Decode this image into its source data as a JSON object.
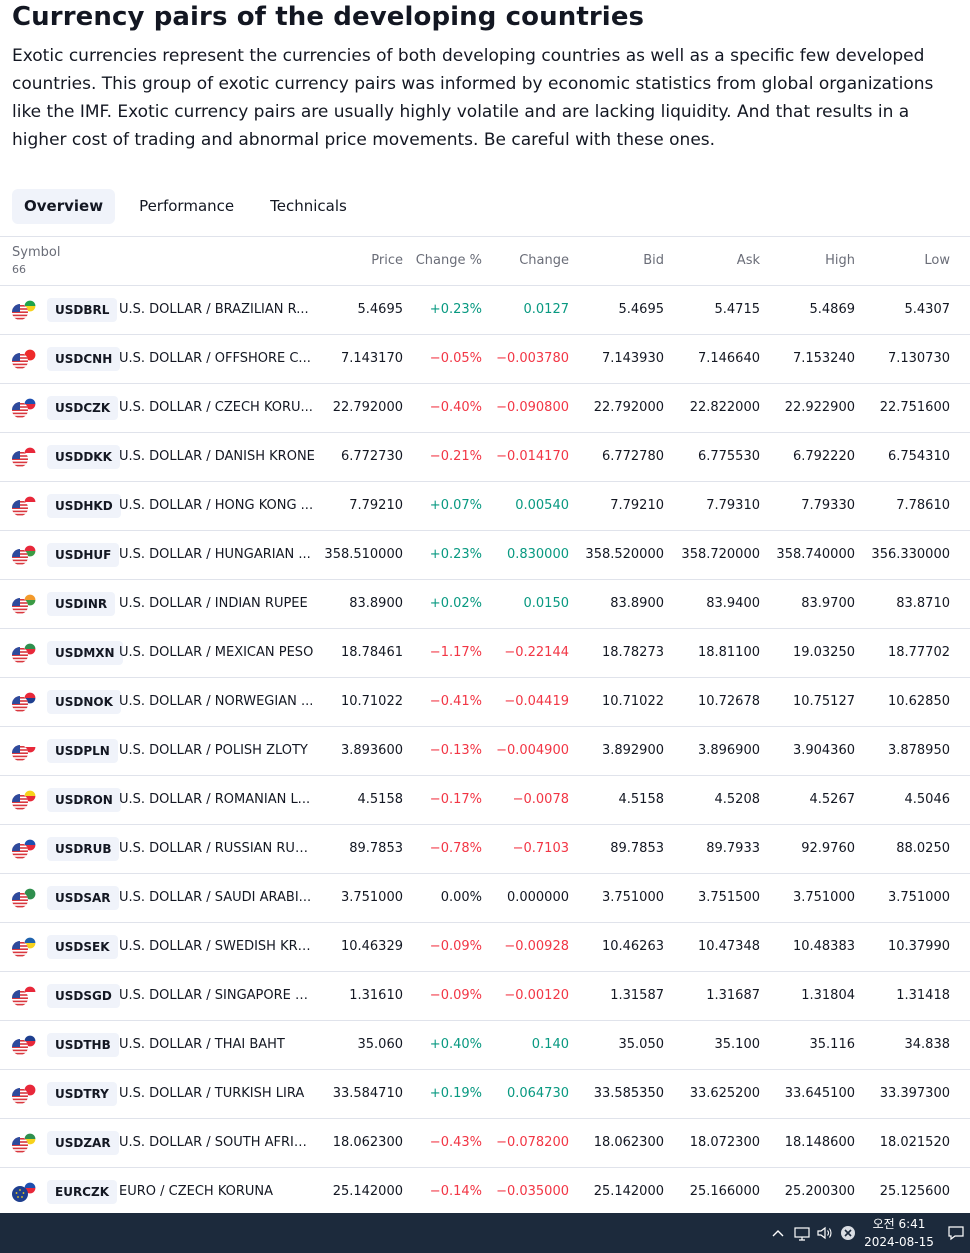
{
  "page": {
    "title": "Currency pairs of the developing countries",
    "description": "Exotic currencies represent the currencies of both developing countries as well as a specific few developed countries. This group of exotic currency pairs was informed by economic statistics from global organizations like the IMF. Exotic currency pairs are usually highly volatile and are lacking liquidity. And that results in a higher cost of trading and abnormal price movements. Be careful with these ones."
  },
  "tabs": [
    {
      "label": "Overview",
      "active": true
    },
    {
      "label": "Performance",
      "active": false
    },
    {
      "label": "Technicals",
      "active": false
    }
  ],
  "table": {
    "symbol_header": "Symbol",
    "symbol_count": "66",
    "columns": [
      "Price",
      "Change %",
      "Change",
      "Bid",
      "Ask",
      "High",
      "Low"
    ],
    "rows": [
      {
        "ticker": "USDBRL",
        "name": "U.S. DOLLAR / BRAZILIAN R...",
        "price": "5.4695",
        "chg_pct": "+0.23%",
        "chg": "0.0127",
        "bid": "5.4695",
        "ask": "5.4715",
        "high": "5.4869",
        "low": "5.4307",
        "dir": "pos",
        "flag": "brazil",
        "flag_colors": [
          "#1fa34a",
          "#f7d21c"
        ]
      },
      {
        "ticker": "USDCNH",
        "name": "U.S. DOLLAR / OFFSHORE C...",
        "price": "7.143170",
        "chg_pct": "−0.05%",
        "chg": "−0.003780",
        "bid": "7.143930",
        "ask": "7.146640",
        "high": "7.153240",
        "low": "7.130730",
        "dir": "neg",
        "flag": "china",
        "flag_colors": [
          "#ee2a2a",
          "#ee2a2a"
        ]
      },
      {
        "ticker": "USDCZK",
        "name": "U.S. DOLLAR / CZECH KORU...",
        "price": "22.792000",
        "chg_pct": "−0.40%",
        "chg": "−0.090800",
        "bid": "22.792000",
        "ask": "22.822000",
        "high": "22.922900",
        "low": "22.751600",
        "dir": "neg",
        "flag": "czech",
        "flag_colors": [
          "#1e4fb0",
          "#e8283a"
        ]
      },
      {
        "ticker": "USDDKK",
        "name": "U.S. DOLLAR / DANISH KRONE",
        "price": "6.772730",
        "chg_pct": "−0.21%",
        "chg": "−0.014170",
        "bid": "6.772780",
        "ask": "6.775530",
        "high": "6.792220",
        "low": "6.754310",
        "dir": "neg",
        "flag": "denmark",
        "flag_colors": [
          "#e8283a",
          "#ffffff"
        ]
      },
      {
        "ticker": "USDHKD",
        "name": "U.S. DOLLAR / HONG KONG ...",
        "price": "7.79210",
        "chg_pct": "+0.07%",
        "chg": "0.00540",
        "bid": "7.79210",
        "ask": "7.79310",
        "high": "7.79330",
        "low": "7.78610",
        "dir": "pos",
        "flag": "hongkong",
        "flag_colors": [
          "#e8283a",
          "#ffffff"
        ]
      },
      {
        "ticker": "USDHUF",
        "name": "U.S. DOLLAR / HUNGARIAN ...",
        "price": "358.510000",
        "chg_pct": "+0.23%",
        "chg": "0.830000",
        "bid": "358.520000",
        "ask": "358.720000",
        "high": "358.740000",
        "low": "356.330000",
        "dir": "pos",
        "flag": "hungary",
        "flag_colors": [
          "#e8283a",
          "#3b9b44"
        ]
      },
      {
        "ticker": "USDINR",
        "name": "U.S. DOLLAR / INDIAN RUPEE",
        "price": "83.8900",
        "chg_pct": "+0.02%",
        "chg": "0.0150",
        "bid": "83.8900",
        "ask": "83.9400",
        "high": "83.9700",
        "low": "83.8710",
        "dir": "pos",
        "flag": "india",
        "flag_colors": [
          "#f39a2b",
          "#3b9b44"
        ]
      },
      {
        "ticker": "USDMXN",
        "name": "U.S. DOLLAR / MEXICAN PESO",
        "price": "18.78461",
        "chg_pct": "−1.17%",
        "chg": "−0.22144",
        "bid": "18.78273",
        "ask": "18.81100",
        "high": "19.03250",
        "low": "18.77702",
        "dir": "neg",
        "flag": "mexico",
        "flag_colors": [
          "#2f8f4e",
          "#e8283a"
        ]
      },
      {
        "ticker": "USDNOK",
        "name": "U.S. DOLLAR / NORWEGIAN ...",
        "price": "10.71022",
        "chg_pct": "−0.41%",
        "chg": "−0.04419",
        "bid": "10.71022",
        "ask": "10.72678",
        "high": "10.75127",
        "low": "10.62850",
        "dir": "neg",
        "flag": "norway",
        "flag_colors": [
          "#e8283a",
          "#1e3f8f"
        ]
      },
      {
        "ticker": "USDPLN",
        "name": "U.S. DOLLAR / POLISH ZLOTY",
        "price": "3.893600",
        "chg_pct": "−0.13%",
        "chg": "−0.004900",
        "bid": "3.892900",
        "ask": "3.896900",
        "high": "3.904360",
        "low": "3.878950",
        "dir": "neg",
        "flag": "poland",
        "flag_colors": [
          "#ffffff",
          "#e8283a"
        ]
      },
      {
        "ticker": "USDRON",
        "name": "U.S. DOLLAR / ROMANIAN L...",
        "price": "4.5158",
        "chg_pct": "−0.17%",
        "chg": "−0.0078",
        "bid": "4.5158",
        "ask": "4.5208",
        "high": "4.5267",
        "low": "4.5046",
        "dir": "neg",
        "flag": "romania",
        "flag_colors": [
          "#f7d21c",
          "#e8283a"
        ]
      },
      {
        "ticker": "USDRUB",
        "name": "U.S. DOLLAR / RUSSIAN RUB...",
        "price": "89.7853",
        "chg_pct": "−0.78%",
        "chg": "−0.7103",
        "bid": "89.7853",
        "ask": "89.7933",
        "high": "92.9760",
        "low": "88.0250",
        "dir": "neg",
        "flag": "russia",
        "flag_colors": [
          "#1e4fb0",
          "#e8283a"
        ]
      },
      {
        "ticker": "USDSAR",
        "name": "U.S. DOLLAR / SAUDI ARABI...",
        "price": "3.751000",
        "chg_pct": "0.00%",
        "chg": "0.000000",
        "bid": "3.751000",
        "ask": "3.751500",
        "high": "3.751000",
        "low": "3.751000",
        "dir": "neutral",
        "flag": "saudi",
        "flag_colors": [
          "#2f8f4e",
          "#2f8f4e"
        ]
      },
      {
        "ticker": "USDSEK",
        "name": "U.S. DOLLAR / SWEDISH KRO...",
        "price": "10.46329",
        "chg_pct": "−0.09%",
        "chg": "−0.00928",
        "bid": "10.46263",
        "ask": "10.47348",
        "high": "10.48383",
        "low": "10.37990",
        "dir": "neg",
        "flag": "sweden",
        "flag_colors": [
          "#1f62ad",
          "#f7d21c"
        ]
      },
      {
        "ticker": "USDSGD",
        "name": "U.S. DOLLAR / SINGAPORE D...",
        "price": "1.31610",
        "chg_pct": "−0.09%",
        "chg": "−0.00120",
        "bid": "1.31587",
        "ask": "1.31687",
        "high": "1.31804",
        "low": "1.31418",
        "dir": "neg",
        "flag": "singapore",
        "flag_colors": [
          "#e8283a",
          "#ffffff"
        ]
      },
      {
        "ticker": "USDTHB",
        "name": "U.S. DOLLAR / THAI BAHT",
        "price": "35.060",
        "chg_pct": "+0.40%",
        "chg": "0.140",
        "bid": "35.050",
        "ask": "35.100",
        "high": "35.116",
        "low": "34.838",
        "dir": "pos",
        "flag": "thailand",
        "flag_colors": [
          "#1e3f8f",
          "#e8283a"
        ]
      },
      {
        "ticker": "USDTRY",
        "name": "U.S. DOLLAR / TURKISH LIRA",
        "price": "33.584710",
        "chg_pct": "+0.19%",
        "chg": "0.064730",
        "bid": "33.585350",
        "ask": "33.625200",
        "high": "33.645100",
        "low": "33.397300",
        "dir": "pos",
        "flag": "turkey",
        "flag_colors": [
          "#e8283a",
          "#e8283a"
        ]
      },
      {
        "ticker": "USDZAR",
        "name": "U.S. DOLLAR / SOUTH AFRIC...",
        "price": "18.062300",
        "chg_pct": "−0.43%",
        "chg": "−0.078200",
        "bid": "18.062300",
        "ask": "18.072300",
        "high": "18.148600",
        "low": "18.021520",
        "dir": "neg",
        "flag": "southafrica",
        "flag_colors": [
          "#2f8f4e",
          "#f7d21c"
        ]
      },
      {
        "ticker": "EURCZK",
        "name": "EURO / CZECH KORUNA",
        "price": "25.142000",
        "chg_pct": "−0.14%",
        "chg": "−0.035000",
        "bid": "25.142000",
        "ask": "25.166000",
        "high": "25.200300",
        "low": "25.125600",
        "dir": "neg",
        "flag": "czech",
        "flag_colors": [
          "#1e4fb0",
          "#e8283a"
        ],
        "base": "eu"
      }
    ]
  },
  "taskbar": {
    "time": "오전 6:41",
    "date": "2024-08-15",
    "icons": [
      "chevron-up-icon",
      "network-icon",
      "volume-icon",
      "close-circle-icon",
      "notification-icon"
    ]
  },
  "colors": {
    "positive": "#089981",
    "negative": "#f23645",
    "accent_bg": "#f0f3fa",
    "taskbar": "#1c2a3c"
  }
}
